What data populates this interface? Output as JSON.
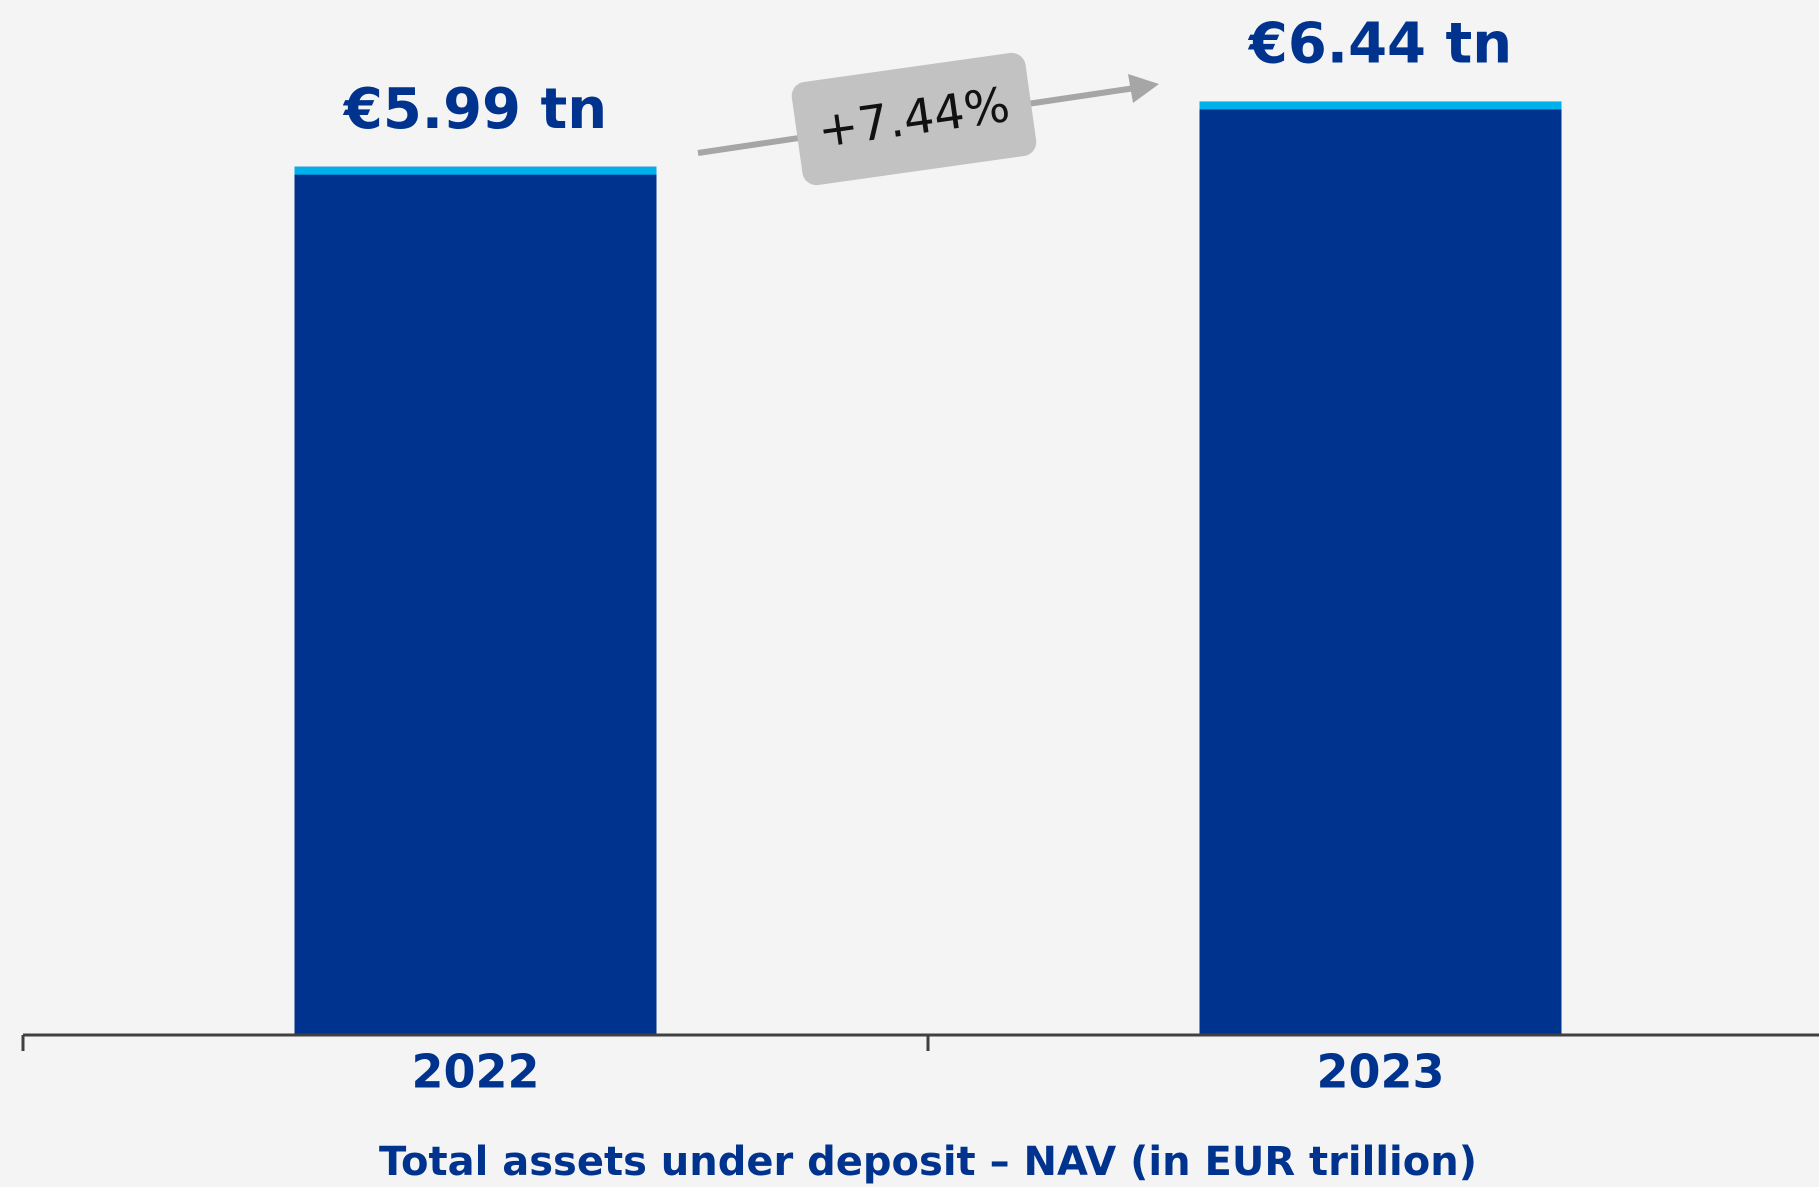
{
  "chart_data": {
    "type": "bar",
    "categories": [
      "2022",
      "2023"
    ],
    "values": [
      5.99,
      6.44
    ],
    "value_labels": [
      "€5.99 tn",
      "€6.44 tn"
    ],
    "color": "#00338d",
    "cap_color": "#00b0ea",
    "ylim": [
      0,
      7.14
    ],
    "x_label": "Total assets under deposit – NAV (in EUR trillion)",
    "annotation": "+7.44%"
  }
}
